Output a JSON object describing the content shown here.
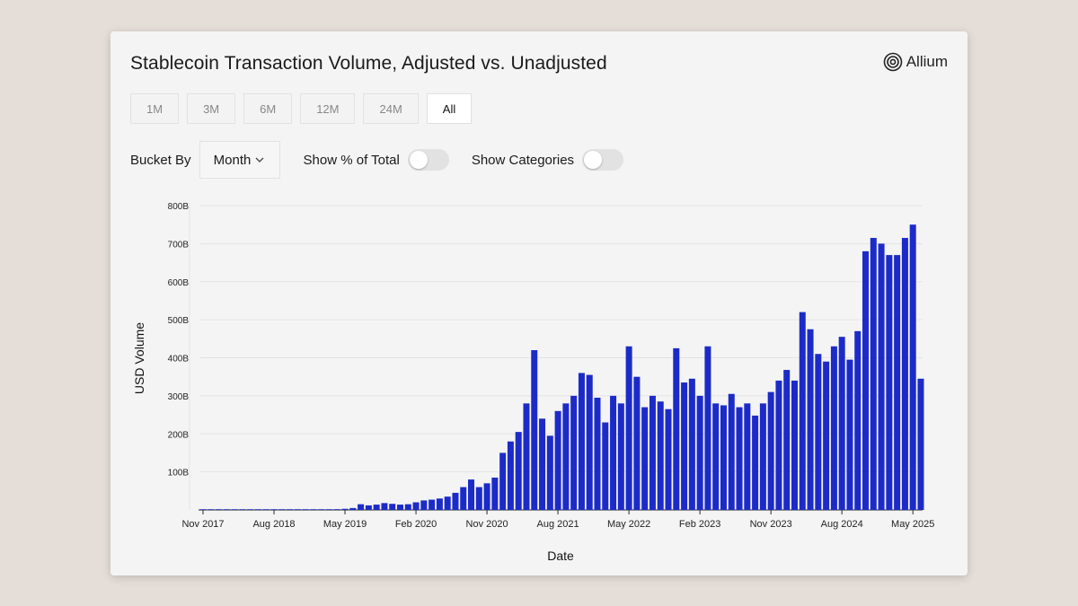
{
  "header": {
    "title": "Stablecoin Transaction Volume, Adjusted vs. Unadjusted",
    "brand": "Allium"
  },
  "range_buttons": [
    {
      "label": "1M",
      "active": false
    },
    {
      "label": "3M",
      "active": false
    },
    {
      "label": "6M",
      "active": false
    },
    {
      "label": "12M",
      "active": false
    },
    {
      "label": "24M",
      "active": false
    },
    {
      "label": "All",
      "active": true
    }
  ],
  "controls": {
    "bucket_label": "Bucket By",
    "bucket_value": "Month",
    "show_pct_label": "Show % of Total",
    "show_pct_on": false,
    "show_categories_label": "Show Categories",
    "show_categories_on": false
  },
  "colors": {
    "bar": "#1c2bc7",
    "grid": "#e3e3e3"
  },
  "chart_data": {
    "type": "bar",
    "xlabel": "Date",
    "ylabel": "USD Volume",
    "ylim": [
      0,
      800
    ],
    "y_unit": "B",
    "yticks": [
      {
        "value": 100,
        "label": "100B"
      },
      {
        "value": 200,
        "label": "200B"
      },
      {
        "value": 300,
        "label": "300B"
      },
      {
        "value": 400,
        "label": "400B"
      },
      {
        "value": 500,
        "label": "500B"
      },
      {
        "value": 600,
        "label": "600B"
      },
      {
        "value": 700,
        "label": "700B"
      },
      {
        "value": 800,
        "label": "800B"
      }
    ],
    "xticks": [
      {
        "index": 0,
        "label": "Nov 2017"
      },
      {
        "index": 9,
        "label": "Aug 2018"
      },
      {
        "index": 18,
        "label": "May 2019"
      },
      {
        "index": 27,
        "label": "Feb 2020"
      },
      {
        "index": 36,
        "label": "Nov 2020"
      },
      {
        "index": 45,
        "label": "Aug 2021"
      },
      {
        "index": 54,
        "label": "May 2022"
      },
      {
        "index": 63,
        "label": "Feb 2023"
      },
      {
        "index": 72,
        "label": "Nov 2023"
      },
      {
        "index": 81,
        "label": "Aug 2024"
      },
      {
        "index": 90,
        "label": "May 2025"
      }
    ],
    "start_month": "2017-11",
    "values": [
      0.5,
      0.5,
      0.5,
      0.5,
      0.5,
      0.5,
      0.5,
      0.5,
      0.5,
      1,
      1,
      1,
      1,
      1,
      1,
      1,
      1,
      2,
      3,
      5,
      15,
      12,
      14,
      18,
      16,
      14,
      15,
      20,
      25,
      27,
      30,
      35,
      45,
      60,
      80,
      60,
      70,
      85,
      150,
      180,
      205,
      280,
      420,
      240,
      195,
      260,
      280,
      300,
      360,
      355,
      295,
      230,
      300,
      280,
      430,
      350,
      270,
      300,
      285,
      265,
      425,
      335,
      345,
      300,
      430,
      280,
      275,
      305,
      270,
      280,
      248,
      280,
      310,
      340,
      368,
      340,
      520,
      475,
      410,
      390,
      430,
      455,
      395,
      470,
      680,
      715,
      700,
      670,
      670,
      715,
      750,
      345
    ]
  }
}
